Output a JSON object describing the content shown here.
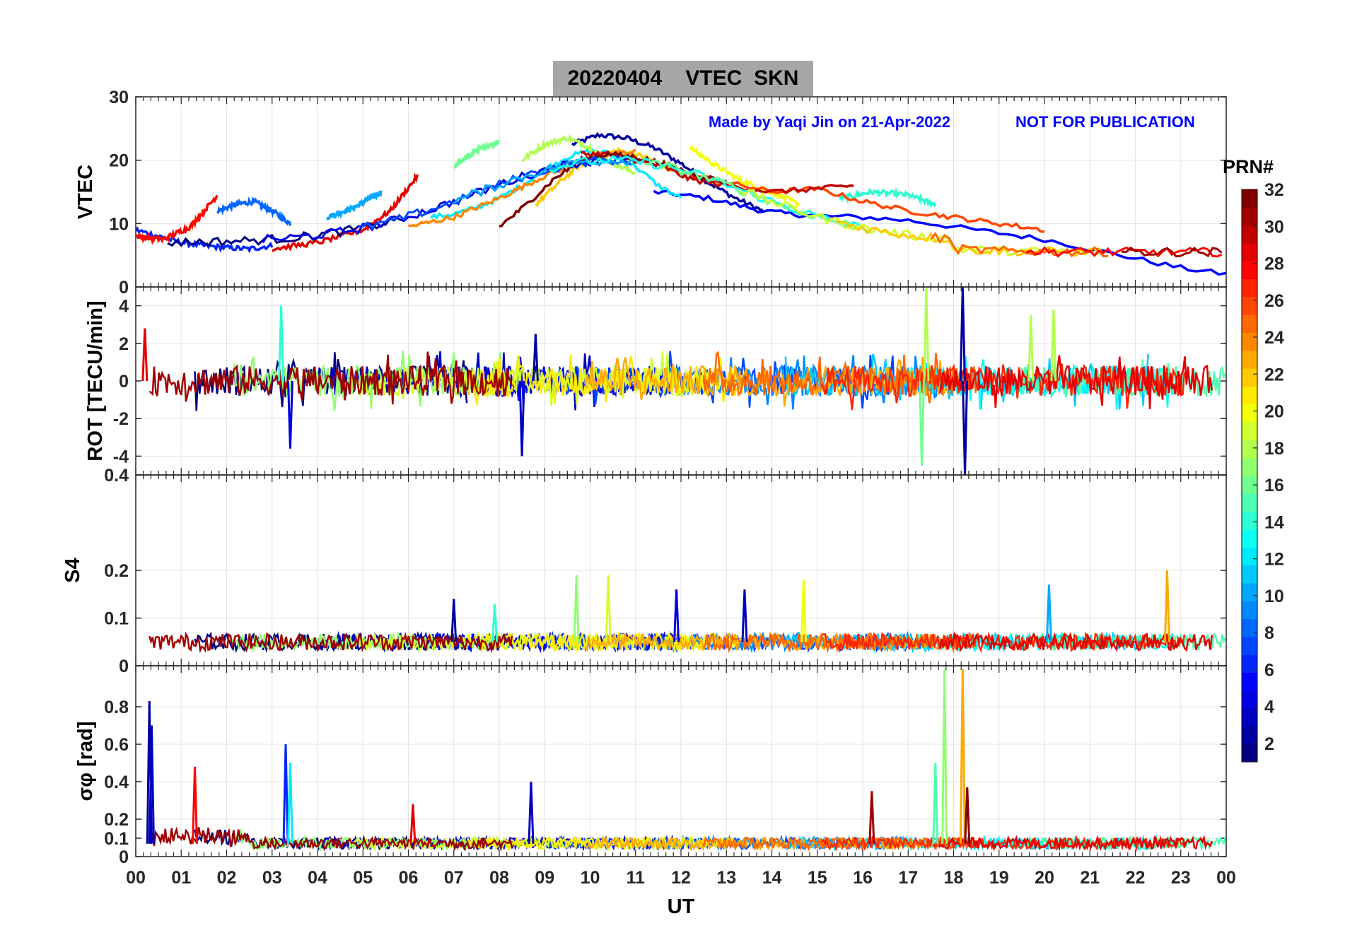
{
  "title": "20220404    VTEC  SKN",
  "annotation_left": "Made by Yaqi Jin on 21-Apr-2022",
  "annotation_right": "NOT FOR PUBLICATION",
  "colorbar": {
    "label": "PRN#",
    "range": [
      1,
      32
    ],
    "ticks": [
      "2",
      "4",
      "6",
      "8",
      "10",
      "12",
      "14",
      "16",
      "18",
      "20",
      "22",
      "24",
      "26",
      "28",
      "30",
      "32"
    ],
    "colormap": "jet"
  },
  "chart_data": [
    {
      "type": "line",
      "panel": "VTEC",
      "ylabel": "VTEC",
      "ylim": [
        0,
        30
      ],
      "yticks": [
        "0",
        "10",
        "20",
        "30"
      ],
      "xlim": [
        0,
        24
      ],
      "grid": true,
      "series": [
        {
          "prn": 2,
          "x": [
            9.6,
            10.2,
            10.8,
            11.4,
            12.0,
            12.6,
            13.2,
            13.8
          ],
          "y": [
            22.5,
            24.0,
            23.5,
            22.0,
            19.5,
            16.5,
            14.0,
            12.0
          ]
        },
        {
          "prn": 5,
          "x": [
            11.4,
            12.0,
            12.6,
            13.2,
            13.8,
            14.4,
            15.0,
            16.0,
            17.0,
            18.0,
            19.0,
            20.0,
            21.0,
            22.0,
            23.0,
            24.0
          ],
          "y": [
            15.0,
            14.5,
            14.0,
            13.0,
            12.0,
            11.5,
            11.2,
            11.0,
            10.5,
            9.5,
            8.5,
            7.5,
            6.0,
            4.5,
            3.0,
            2.0
          ]
        },
        {
          "prn": 6,
          "x": [
            0.0,
            0.5,
            1.0,
            1.5,
            2.0,
            2.5,
            3.0
          ],
          "y": [
            9.0,
            8.0,
            7.0,
            6.5,
            6.2,
            6.0,
            6.5
          ]
        },
        {
          "prn": 8,
          "x": [
            1.8,
            2.2,
            2.6,
            3.0,
            3.4
          ],
          "y": [
            12.0,
            13.0,
            13.5,
            12.0,
            10.0
          ]
        },
        {
          "prn": 10,
          "x": [
            4.2,
            4.8,
            5.4
          ],
          "y": [
            11.0,
            12.5,
            15.0
          ]
        },
        {
          "prn": 12,
          "x": [
            6.5,
            7.0,
            7.5,
            8.0,
            8.5,
            9.0,
            9.5,
            10.0,
            10.5,
            11.0,
            11.5,
            12.0
          ],
          "y": [
            11.0,
            11.5,
            12.5,
            14.0,
            16.0,
            18.5,
            20.5,
            21.5,
            21.0,
            19.0,
            16.0,
            14.0
          ]
        },
        {
          "prn": 14,
          "x": [
            15.5,
            16.2,
            17.0,
            17.6
          ],
          "y": [
            14.0,
            15.0,
            14.5,
            13.0
          ]
        },
        {
          "prn": 16,
          "x": [
            7.0,
            7.5,
            8.0
          ],
          "y": [
            19.0,
            21.5,
            23.0
          ]
        },
        {
          "prn": 18,
          "x": [
            8.5,
            9.0,
            9.5,
            10.0,
            10.5,
            11.0
          ],
          "y": [
            20.0,
            22.5,
            23.5,
            22.0,
            19.5,
            18.0
          ]
        },
        {
          "prn": 20,
          "x": [
            12.2,
            12.8,
            13.4,
            14.0,
            14.6
          ],
          "y": [
            22.0,
            19.0,
            16.5,
            15.0,
            13.0
          ]
        },
        {
          "prn": 22,
          "x": [
            8.8,
            9.4,
            10.0,
            10.6,
            11.2,
            11.8
          ],
          "y": [
            13.0,
            17.0,
            20.5,
            21.5,
            20.5,
            18.5
          ]
        },
        {
          "prn": 24,
          "x": [
            6.0,
            7.0,
            8.0,
            9.0,
            10.0,
            11.0
          ],
          "y": [
            9.5,
            11.0,
            14.0,
            17.5,
            20.5,
            21.5
          ]
        },
        {
          "prn": 26,
          "x": [
            12.0,
            13.0,
            14.0,
            15.0,
            16.0,
            17.0,
            18.0,
            19.0,
            20.0
          ],
          "y": [
            18.0,
            16.5,
            15.0,
            15.5,
            13.5,
            12.0,
            11.0,
            10.0,
            9.0
          ]
        },
        {
          "prn": 28,
          "x": [
            0.0,
            0.6,
            1.2,
            1.8
          ],
          "y": [
            8.0,
            7.5,
            9.5,
            14.5
          ]
        },
        {
          "prn": 29,
          "x": [
            3.0,
            4.0,
            5.0,
            5.6,
            6.2
          ],
          "y": [
            6.0,
            7.0,
            9.0,
            12.0,
            17.5
          ]
        },
        {
          "prn": 30,
          "x": [
            9.8,
            10.4,
            11.0,
            11.6,
            12.2,
            13.0,
            14.0,
            15.0,
            15.8
          ],
          "y": [
            21.0,
            21.0,
            20.0,
            19.0,
            17.0,
            16.0,
            15.0,
            15.5,
            16.0
          ]
        },
        {
          "prn": 32,
          "x": [
            8.0,
            8.6,
            9.2,
            9.8,
            10.4,
            11.0,
            11.6,
            12.2,
            13.0
          ],
          "y": [
            9.5,
            13.0,
            17.0,
            20.0,
            21.0,
            20.5,
            19.5,
            18.0,
            16.5
          ]
        }
      ]
    },
    {
      "type": "line",
      "panel": "ROT",
      "ylabel": "ROT [TECU/min]",
      "ylim": [
        -5,
        5
      ],
      "yticks": [
        "-4",
        "-2",
        "0",
        "2",
        "4"
      ],
      "xlim": [
        0,
        24
      ],
      "grid": true,
      "spikes": [
        {
          "prn": 14,
          "x": 3.2,
          "y": 4.0
        },
        {
          "prn": 4,
          "x": 3.4,
          "y": -3.6
        },
        {
          "prn": 3,
          "x": 8.5,
          "y": -4.0
        },
        {
          "prn": 2,
          "x": 8.8,
          "y": 2.5
        },
        {
          "prn": 18,
          "x": 17.4,
          "y": 5.0
        },
        {
          "prn": 16,
          "x": 17.3,
          "y": -4.5
        },
        {
          "prn": 2,
          "x": 18.2,
          "y": 5.0
        },
        {
          "prn": 2,
          "x": 18.25,
          "y": -5.0
        },
        {
          "prn": 18,
          "x": 19.7,
          "y": 3.5
        },
        {
          "prn": 18,
          "x": 20.2,
          "y": 3.8
        },
        {
          "prn": 29,
          "x": 0.2,
          "y": 2.8
        }
      ],
      "baseline_amplitude": 0.8
    },
    {
      "type": "line",
      "panel": "S4",
      "ylabel": "S4",
      "ylim": [
        0,
        0.4
      ],
      "yticks": [
        "0",
        "0.1",
        "0.2",
        "0.4"
      ],
      "xlim": [
        0,
        24
      ],
      "grid": true,
      "baseline_mean": 0.05,
      "spikes": [
        {
          "prn": 17,
          "x": 9.7,
          "y": 0.19
        },
        {
          "prn": 19,
          "x": 10.4,
          "y": 0.19
        },
        {
          "prn": 20,
          "x": 14.7,
          "y": 0.18
        },
        {
          "prn": 23,
          "x": 22.7,
          "y": 0.2
        },
        {
          "prn": 10,
          "x": 20.1,
          "y": 0.17
        },
        {
          "prn": 4,
          "x": 11.9,
          "y": 0.16
        },
        {
          "prn": 3,
          "x": 13.4,
          "y": 0.16
        },
        {
          "prn": 2,
          "x": 7.0,
          "y": 0.14
        },
        {
          "prn": 14,
          "x": 7.9,
          "y": 0.13
        }
      ]
    },
    {
      "type": "line",
      "panel": "sigma_phi",
      "ylabel": "σφ [rad]",
      "ylim": [
        0,
        1.0
      ],
      "yticks": [
        "0",
        "0.1",
        "0.2",
        "0.4",
        "0.6",
        "0.8"
      ],
      "xlim": [
        0,
        24
      ],
      "grid": true,
      "baseline_mean": 0.07,
      "spikes": [
        {
          "prn": 2,
          "x": 0.3,
          "y": 0.83
        },
        {
          "prn": 3,
          "x": 0.35,
          "y": 0.7
        },
        {
          "prn": 6,
          "x": 3.3,
          "y": 0.6
        },
        {
          "prn": 12,
          "x": 3.4,
          "y": 0.5
        },
        {
          "prn": 28,
          "x": 1.3,
          "y": 0.48
        },
        {
          "prn": 3,
          "x": 8.7,
          "y": 0.4
        },
        {
          "prn": 15,
          "x": 17.6,
          "y": 0.5
        },
        {
          "prn": 17,
          "x": 17.8,
          "y": 1.0
        },
        {
          "prn": 23,
          "x": 18.2,
          "y": 1.0
        },
        {
          "prn": 31,
          "x": 16.2,
          "y": 0.35
        },
        {
          "prn": 32,
          "x": 18.3,
          "y": 0.37
        },
        {
          "prn": 29,
          "x": 6.1,
          "y": 0.28
        }
      ]
    }
  ],
  "xaxis": {
    "label": "UT",
    "ticks": [
      "00",
      "01",
      "02",
      "03",
      "04",
      "05",
      "06",
      "07",
      "08",
      "09",
      "10",
      "11",
      "12",
      "13",
      "14",
      "15",
      "16",
      "17",
      "18",
      "19",
      "20",
      "21",
      "22",
      "23",
      "00"
    ]
  }
}
